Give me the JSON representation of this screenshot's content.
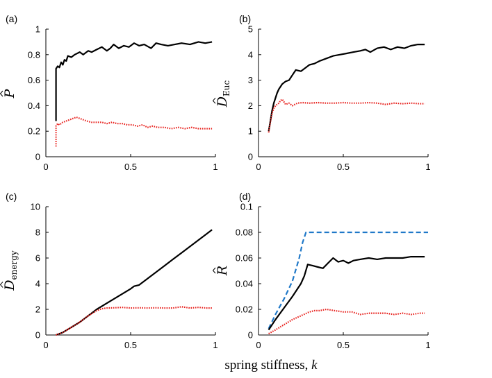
{
  "figure": {
    "xlabel_text": "spring stiffness, ",
    "xlabel_symbol": "k"
  },
  "style": {
    "black": "#000000",
    "red": "#e8231f",
    "blue": "#1f78c8"
  },
  "chart_data": [
    {
      "type": "line",
      "panel_label": "(a)",
      "ylabel": "P",
      "ylabel_sub": "",
      "xlim": [
        0,
        1
      ],
      "ylim": [
        0,
        1
      ],
      "xticks": [
        0,
        0.5,
        1
      ],
      "xtick_labels": [
        "0",
        "0.5",
        "1"
      ],
      "yticks": [
        0,
        0.2,
        0.4,
        0.6,
        0.8,
        1
      ],
      "ytick_labels": [
        "0",
        "0.2",
        "0.4",
        "0.6",
        "0.8",
        "1"
      ],
      "series": [
        {
          "name": "black-solid",
          "style": "solid",
          "color": "#000000",
          "x": [
            0.06,
            0.06,
            0.07,
            0.08,
            0.09,
            0.1,
            0.11,
            0.12,
            0.13,
            0.15,
            0.17,
            0.2,
            0.22,
            0.25,
            0.27,
            0.3,
            0.33,
            0.36,
            0.38,
            0.4,
            0.43,
            0.46,
            0.49,
            0.52,
            0.55,
            0.58,
            0.62,
            0.65,
            0.68,
            0.72,
            0.76,
            0.8,
            0.85,
            0.9,
            0.94,
            0.98
          ],
          "y": [
            0.28,
            0.69,
            0.71,
            0.7,
            0.74,
            0.72,
            0.76,
            0.75,
            0.79,
            0.78,
            0.8,
            0.82,
            0.8,
            0.83,
            0.82,
            0.84,
            0.86,
            0.83,
            0.85,
            0.88,
            0.85,
            0.87,
            0.86,
            0.89,
            0.87,
            0.88,
            0.85,
            0.89,
            0.88,
            0.87,
            0.88,
            0.89,
            0.88,
            0.9,
            0.89,
            0.9
          ]
        },
        {
          "name": "red-dotted",
          "style": "dotted",
          "color": "#e8231f",
          "x": [
            0.06,
            0.06,
            0.07,
            0.08,
            0.1,
            0.12,
            0.14,
            0.16,
            0.18,
            0.2,
            0.22,
            0.24,
            0.27,
            0.3,
            0.33,
            0.36,
            0.39,
            0.42,
            0.45,
            0.48,
            0.51,
            0.54,
            0.57,
            0.6,
            0.63,
            0.66,
            0.7,
            0.74,
            0.78,
            0.82,
            0.86,
            0.9,
            0.94,
            0.98
          ],
          "y": [
            0.08,
            0.24,
            0.26,
            0.25,
            0.27,
            0.28,
            0.29,
            0.3,
            0.31,
            0.3,
            0.29,
            0.28,
            0.27,
            0.27,
            0.27,
            0.26,
            0.27,
            0.26,
            0.26,
            0.25,
            0.25,
            0.24,
            0.25,
            0.23,
            0.24,
            0.23,
            0.23,
            0.22,
            0.23,
            0.22,
            0.23,
            0.22,
            0.22,
            0.22
          ]
        }
      ]
    },
    {
      "type": "line",
      "panel_label": "(b)",
      "ylabel": "D",
      "ylabel_sub": "Euc",
      "xlim": [
        0,
        1
      ],
      "ylim": [
        0,
        5
      ],
      "xticks": [
        0,
        0.5,
        1
      ],
      "xtick_labels": [
        "0",
        "0.5",
        "1"
      ],
      "yticks": [
        0,
        1,
        2,
        3,
        4,
        5
      ],
      "ytick_labels": [
        "0",
        "1",
        "2",
        "3",
        "4",
        "5"
      ],
      "series": [
        {
          "name": "black-solid",
          "style": "solid",
          "color": "#000000",
          "x": [
            0.06,
            0.07,
            0.08,
            0.09,
            0.1,
            0.11,
            0.12,
            0.14,
            0.16,
            0.18,
            0.2,
            0.22,
            0.25,
            0.28,
            0.3,
            0.33,
            0.36,
            0.4,
            0.44,
            0.48,
            0.52,
            0.56,
            0.6,
            0.63,
            0.66,
            0.7,
            0.74,
            0.78,
            0.82,
            0.86,
            0.9,
            0.94,
            0.98
          ],
          "y": [
            1.0,
            1.4,
            1.8,
            2.1,
            2.3,
            2.5,
            2.65,
            2.85,
            2.95,
            3.0,
            3.2,
            3.4,
            3.35,
            3.5,
            3.6,
            3.65,
            3.75,
            3.85,
            3.95,
            4.0,
            4.05,
            4.1,
            4.15,
            4.2,
            4.1,
            4.25,
            4.3,
            4.2,
            4.3,
            4.25,
            4.35,
            4.4,
            4.4
          ]
        },
        {
          "name": "red-dotted",
          "style": "dotted",
          "color": "#e8231f",
          "x": [
            0.06,
            0.07,
            0.08,
            0.09,
            0.1,
            0.11,
            0.12,
            0.13,
            0.14,
            0.16,
            0.18,
            0.2,
            0.23,
            0.26,
            0.3,
            0.35,
            0.4,
            0.45,
            0.5,
            0.55,
            0.6,
            0.65,
            0.7,
            0.75,
            0.8,
            0.85,
            0.9,
            0.95,
            0.98
          ],
          "y": [
            0.95,
            1.35,
            1.7,
            1.9,
            2.0,
            2.05,
            2.1,
            2.2,
            2.25,
            2.05,
            2.1,
            2.0,
            2.1,
            2.12,
            2.1,
            2.12,
            2.1,
            2.1,
            2.12,
            2.1,
            2.1,
            2.12,
            2.1,
            2.05,
            2.1,
            2.08,
            2.1,
            2.08,
            2.08
          ]
        }
      ]
    },
    {
      "type": "line",
      "panel_label": "(c)",
      "ylabel": "D",
      "ylabel_sub": "energy",
      "xlim": [
        0,
        1
      ],
      "ylim": [
        0,
        10
      ],
      "xticks": [
        0,
        0.5,
        1
      ],
      "xtick_labels": [
        "0",
        "0.5",
        "1"
      ],
      "yticks": [
        0,
        2,
        4,
        6,
        8,
        10
      ],
      "ytick_labels": [
        "0",
        "2",
        "4",
        "6",
        "8",
        "10"
      ],
      "series": [
        {
          "name": "black-solid",
          "style": "solid",
          "color": "#000000",
          "x": [
            0.06,
            0.1,
            0.15,
            0.2,
            0.25,
            0.3,
            0.35,
            0.4,
            0.45,
            0.5,
            0.52,
            0.55,
            0.6,
            0.65,
            0.7,
            0.75,
            0.8,
            0.85,
            0.9,
            0.95,
            0.98
          ],
          "y": [
            0.0,
            0.2,
            0.6,
            1.0,
            1.5,
            2.0,
            2.4,
            2.8,
            3.2,
            3.6,
            3.8,
            3.9,
            4.4,
            4.9,
            5.4,
            5.9,
            6.4,
            6.9,
            7.4,
            7.9,
            8.2
          ]
        },
        {
          "name": "red-dotted",
          "style": "dotted",
          "color": "#e8231f",
          "x": [
            0.06,
            0.1,
            0.15,
            0.2,
            0.25,
            0.3,
            0.33,
            0.36,
            0.4,
            0.45,
            0.5,
            0.55,
            0.6,
            0.65,
            0.7,
            0.75,
            0.8,
            0.85,
            0.9,
            0.95,
            0.98
          ],
          "y": [
            0.0,
            0.2,
            0.6,
            1.0,
            1.5,
            1.9,
            2.05,
            2.1,
            2.12,
            2.15,
            2.1,
            2.12,
            2.1,
            2.12,
            2.1,
            2.1,
            2.2,
            2.1,
            2.15,
            2.1,
            2.1
          ]
        }
      ]
    },
    {
      "type": "line",
      "panel_label": "(d)",
      "ylabel": "R",
      "ylabel_sub": "",
      "xlim": [
        0,
        1
      ],
      "ylim": [
        0,
        0.1
      ],
      "xticks": [
        0,
        0.5,
        1
      ],
      "xtick_labels": [
        "0",
        "0.5",
        "1"
      ],
      "yticks": [
        0,
        0.02,
        0.04,
        0.06,
        0.08,
        0.1
      ],
      "ytick_labels": [
        "0",
        "0.02",
        "0.04",
        "0.06",
        "0.08",
        "0.1"
      ],
      "series": [
        {
          "name": "blue-dashed",
          "style": "dashed",
          "color": "#1f78c8",
          "x": [
            0.06,
            0.1,
            0.15,
            0.2,
            0.24,
            0.26,
            0.28,
            1.0
          ],
          "y": [
            0.005,
            0.016,
            0.028,
            0.042,
            0.06,
            0.072,
            0.08,
            0.08
          ]
        },
        {
          "name": "black-solid",
          "style": "solid",
          "color": "#000000",
          "x": [
            0.06,
            0.1,
            0.15,
            0.2,
            0.25,
            0.27,
            0.29,
            0.32,
            0.35,
            0.38,
            0.41,
            0.44,
            0.47,
            0.5,
            0.53,
            0.56,
            0.6,
            0.65,
            0.7,
            0.75,
            0.8,
            0.85,
            0.9,
            0.95,
            0.98
          ],
          "y": [
            0.004,
            0.012,
            0.021,
            0.03,
            0.04,
            0.046,
            0.055,
            0.054,
            0.053,
            0.052,
            0.056,
            0.06,
            0.057,
            0.058,
            0.056,
            0.058,
            0.059,
            0.06,
            0.059,
            0.06,
            0.06,
            0.06,
            0.061,
            0.061,
            0.061
          ]
        },
        {
          "name": "red-dotted",
          "style": "dotted",
          "color": "#e8231f",
          "x": [
            0.06,
            0.1,
            0.15,
            0.2,
            0.25,
            0.3,
            0.33,
            0.36,
            0.4,
            0.45,
            0.5,
            0.55,
            0.6,
            0.65,
            0.7,
            0.75,
            0.8,
            0.85,
            0.9,
            0.95,
            0.98
          ],
          "y": [
            0.001,
            0.004,
            0.008,
            0.012,
            0.015,
            0.018,
            0.019,
            0.019,
            0.02,
            0.019,
            0.018,
            0.018,
            0.016,
            0.017,
            0.017,
            0.017,
            0.016,
            0.017,
            0.016,
            0.017,
            0.017
          ]
        }
      ]
    }
  ]
}
